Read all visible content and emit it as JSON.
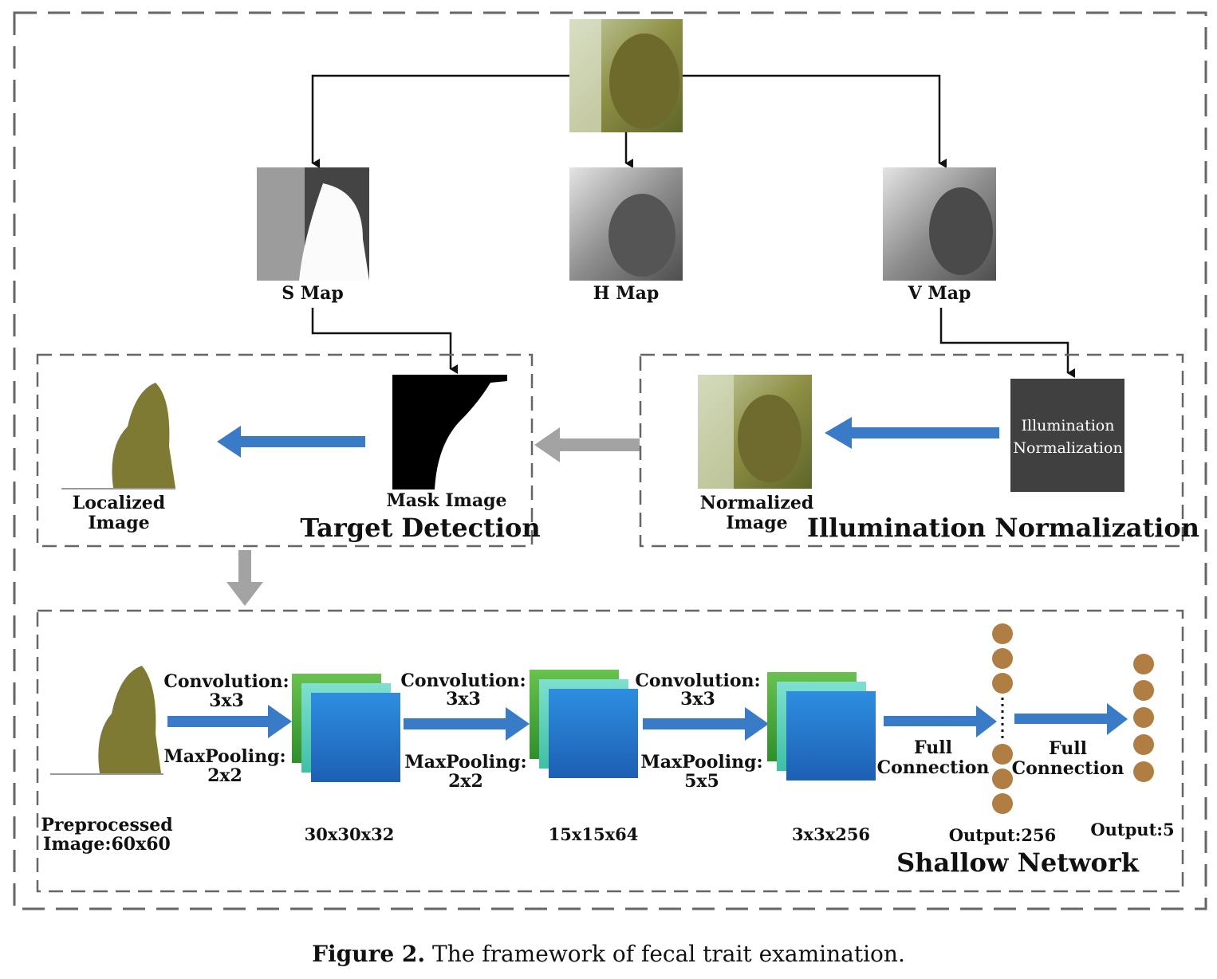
{
  "maps": {
    "s_map": "S Map",
    "h_map": "H Map",
    "v_map": "V Map"
  },
  "target_detection": {
    "title": "Target Detection",
    "localized_line1": "Localized",
    "localized_line2": "Image",
    "mask": "Mask Image"
  },
  "illumination": {
    "title": "Illumination Normalization",
    "box_line1": "Illumination",
    "box_line2": "Normalization",
    "normalized_line1": "Normalized",
    "normalized_line2": "Image"
  },
  "shallow": {
    "title": "Shallow Network",
    "input_line1": "Preprocessed",
    "input_line2": "Image:60x60",
    "stages": [
      {
        "conv": "Convolution:",
        "conv_size": "3x3",
        "pool": "MaxPooling:",
        "pool_size": "2x2",
        "dims": "30x30x32"
      },
      {
        "conv": "Convolution:",
        "conv_size": "3x3",
        "pool": "MaxPooling:",
        "pool_size": "2x2",
        "dims": "15x15x64"
      },
      {
        "conv": "Convolution:",
        "conv_size": "3x3",
        "pool": "MaxPooling:",
        "pool_size": "5x5",
        "dims": "3x3x256"
      }
    ],
    "fc1_line1": "Full",
    "fc1_line2": "Connection",
    "fc2_line1": "Full",
    "fc2_line2": "Connection",
    "out256": "Output:256",
    "out5": "Output:5"
  },
  "colors": {
    "blue_arrow": "#3a7bc8",
    "gray_arrow": "#a3a3a3",
    "neuron": "#b07d43",
    "dark_box": "#404040"
  },
  "caption": {
    "label": "Figure 2.",
    "text": " The framework of fecal trait examination."
  }
}
